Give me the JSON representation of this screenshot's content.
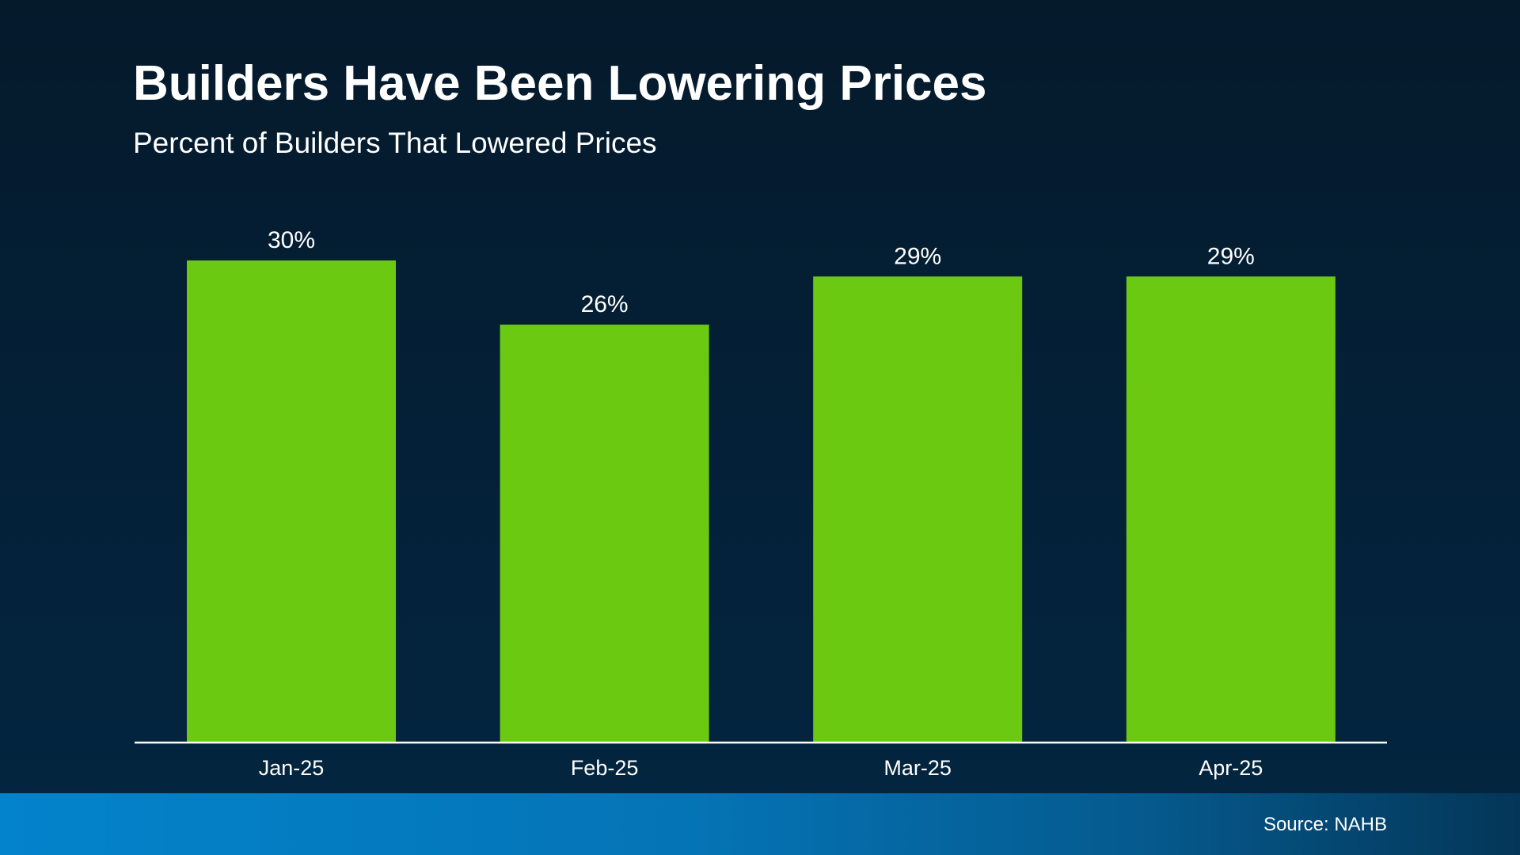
{
  "chart_data": {
    "type": "bar",
    "title": "Builders Have Been Lowering Prices",
    "subtitle": "Percent of Builders That Lowered Prices",
    "categories": [
      "Jan-25",
      "Feb-25",
      "Mar-25",
      "Apr-25"
    ],
    "values": [
      30,
      26,
      29,
      29
    ],
    "data_labels": [
      "30%",
      "26%",
      "29%",
      "29%"
    ],
    "xlabel": "",
    "ylabel": "",
    "ylim": [
      0,
      30
    ],
    "grid": false,
    "bar_color": "#6cc912"
  },
  "footer": {
    "source": "Source: NAHB"
  }
}
